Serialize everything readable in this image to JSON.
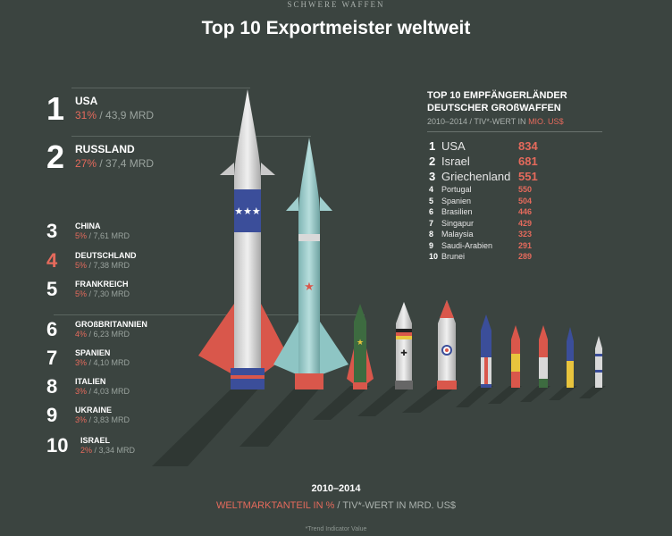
{
  "kicker": "SCHWERE WAFFEN",
  "title": "Top 10 Exportmeister weltweit",
  "exporters": [
    {
      "rank": "1",
      "country": "USA",
      "pct": "31%",
      "value": " / 43,9 MRD"
    },
    {
      "rank": "2",
      "country": "RUSSLAND",
      "pct": "27%",
      "value": " / 37,4 MRD"
    },
    {
      "rank": "3",
      "country": "CHINA",
      "pct": "5%",
      "value": " / 7,61 MRD"
    },
    {
      "rank": "4",
      "country": "DEUTSCHLAND",
      "pct": "5%",
      "value": " / 7,38 MRD"
    },
    {
      "rank": "5",
      "country": "FRANKREICH",
      "pct": "5%",
      "value": " / 7,30 MRD"
    },
    {
      "rank": "6",
      "country": "GROßBRITANNIEN",
      "pct": "4%",
      "value": " / 6,23 MRD"
    },
    {
      "rank": "7",
      "country": "SPANIEN",
      "pct": "3%",
      "value": " / 4,10 MRD"
    },
    {
      "rank": "8",
      "country": "ITALIEN",
      "pct": "3%",
      "value": " / 4,03 MRD"
    },
    {
      "rank": "9",
      "country": "UKRAINE",
      "pct": "3%",
      "value": " / 3,83 MRD"
    },
    {
      "rank": "10",
      "country": "ISRAEL",
      "pct": "2%",
      "value": " / 3,34 MRD"
    }
  ],
  "recipients": {
    "heading_line1": "TOP 10 EMPFÄNGERLÄNDER",
    "heading_line2": "DEUTSCHER GROßWAFFEN",
    "sub_prefix": "2010–2014 / TIV*-WERT IN ",
    "sub_highlight": "MIO. US$",
    "rows": [
      {
        "rank": "1",
        "country": "USA",
        "value": "834"
      },
      {
        "rank": "2",
        "country": "Israel",
        "value": "681"
      },
      {
        "rank": "3",
        "country": "Griechenland",
        "value": "551"
      },
      {
        "rank": "4",
        "country": "Portugal",
        "value": "550"
      },
      {
        "rank": "5",
        "country": "Spanien",
        "value": "504"
      },
      {
        "rank": "6",
        "country": "Brasilien",
        "value": "446"
      },
      {
        "rank": "7",
        "country": "Singapur",
        "value": "429"
      },
      {
        "rank": "8",
        "country": "Malaysia",
        "value": "323"
      },
      {
        "rank": "9",
        "country": "Saudi-Arabien",
        "value": "291"
      },
      {
        "rank": "10",
        "country": "Brunei",
        "value": "289"
      }
    ]
  },
  "footer": {
    "period": "2010–2014",
    "legend_highlight": "WELTMARKTANTEIL IN %",
    "legend_rest": " / TIV*-WERT IN MRD. US$",
    "footnote": "*Trend Indicator Value"
  },
  "colors": {
    "background": "#3b4440",
    "accent": "#e56a5c",
    "rocket_body": "#d9d9d9",
    "rocket_teal": "#8ec5c4"
  },
  "rockets": [
    {
      "country": "USA",
      "value": 43.9
    },
    {
      "country": "RUSSLAND",
      "value": 37.4
    },
    {
      "country": "CHINA",
      "value": 7.61
    },
    {
      "country": "DEUTSCHLAND",
      "value": 7.38
    },
    {
      "country": "FRANKREICH",
      "value": 7.3
    },
    {
      "country": "GROßBRITANNIEN",
      "value": 6.23
    },
    {
      "country": "SPANIEN",
      "value": 4.1
    },
    {
      "country": "ITALIEN",
      "value": 4.03
    },
    {
      "country": "UKRAINE",
      "value": 3.83
    },
    {
      "country": "ISRAEL",
      "value": 3.34
    }
  ]
}
